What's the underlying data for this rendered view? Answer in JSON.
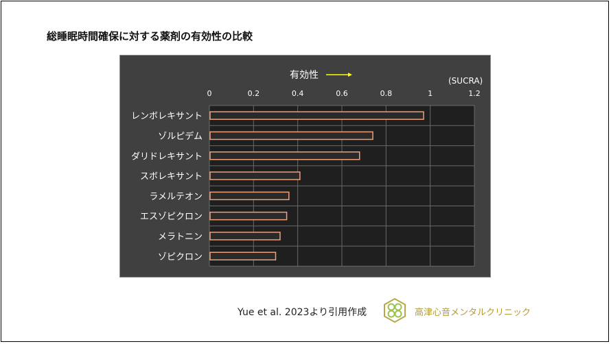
{
  "slide": {
    "title": "総睡眠時間確保に対する薬剤の有効性の比較"
  },
  "chart_data": {
    "type": "bar",
    "orientation": "horizontal",
    "title": "有効性",
    "unit_label": "(SUCRA)",
    "xlim": [
      0,
      1.2
    ],
    "ticks": [
      "0",
      "0.2",
      "0.4",
      "0.6",
      "0.8",
      "1",
      "1.2"
    ],
    "tick_values": [
      0,
      0.2,
      0.4,
      0.6,
      0.8,
      1.0,
      1.2
    ],
    "categories": [
      "レンボレキサント",
      "ゾルピデム",
      "ダリドレキサント",
      "スボレキサント",
      "ラメルテオン",
      "エスゾピクロン",
      "メラトニン",
      "ゾピクロン"
    ],
    "values": [
      0.97,
      0.74,
      0.68,
      0.41,
      0.36,
      0.35,
      0.32,
      0.3
    ],
    "grid": true,
    "colors": {
      "background": "#404040",
      "plot_area": "#1f1f1f",
      "grid": "#6a6a6a",
      "bar_outline": "#f0a078",
      "bar_fill": "#2a2a2a",
      "text": "#ffffff",
      "arrow": "#ffff00"
    }
  },
  "footer": {
    "citation": "Yue et al. 2023より引用作成",
    "clinic": "高津心音メンタルクリニック",
    "logo_icon": "clover-logo-icon"
  }
}
